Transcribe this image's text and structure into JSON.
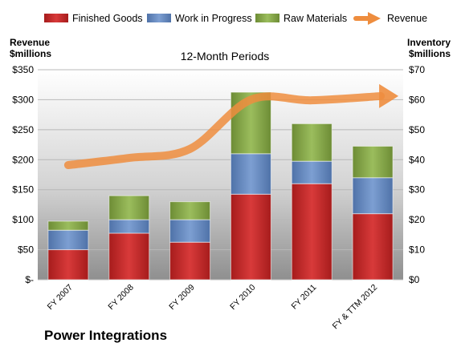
{
  "chart_data": {
    "type": "bar",
    "stacked": true,
    "company": "Power Integrations",
    "subtitle": "12-Month Periods",
    "left_axis_label_line1": "Revenue",
    "left_axis_label_line2": "$millions",
    "right_axis_label_line1": "Inventory",
    "right_axis_label_line2": "$millions",
    "categories": [
      "FY 2007",
      "FY 2008",
      "FY 2009",
      "FY 2010",
      "FY 2011",
      "FY & TTM 2012"
    ],
    "left_ticks": [
      "$-",
      "$50",
      "$100",
      "$150",
      "$200",
      "$250",
      "$300",
      "$350"
    ],
    "right_ticks": [
      "$0",
      "$10",
      "$20",
      "$30",
      "$40",
      "$50",
      "$60",
      "$70"
    ],
    "ylim_left": [
      0,
      350
    ],
    "ylim_right": [
      0,
      70
    ],
    "series": [
      {
        "name": "Finished Goods",
        "axis": "right",
        "color": "#cc2a2a",
        "values": [
          10,
          15.5,
          12.5,
          28.5,
          32,
          22
        ]
      },
      {
        "name": "Work in Progress",
        "axis": "right",
        "color": "#6b8fc7",
        "values": [
          6.5,
          4.5,
          7.5,
          13.5,
          7.5,
          12
        ]
      },
      {
        "name": "Raw Materials",
        "axis": "right",
        "color": "#8aab4e",
        "values": [
          3,
          8,
          6,
          20.5,
          12.5,
          10.5
        ]
      },
      {
        "name": "Revenue",
        "axis": "left",
        "type": "line",
        "color": "#ee8d3e",
        "values": [
          191,
          203,
          218,
          300,
          299,
          306
        ]
      }
    ],
    "grid": true,
    "legend_position": "top"
  }
}
